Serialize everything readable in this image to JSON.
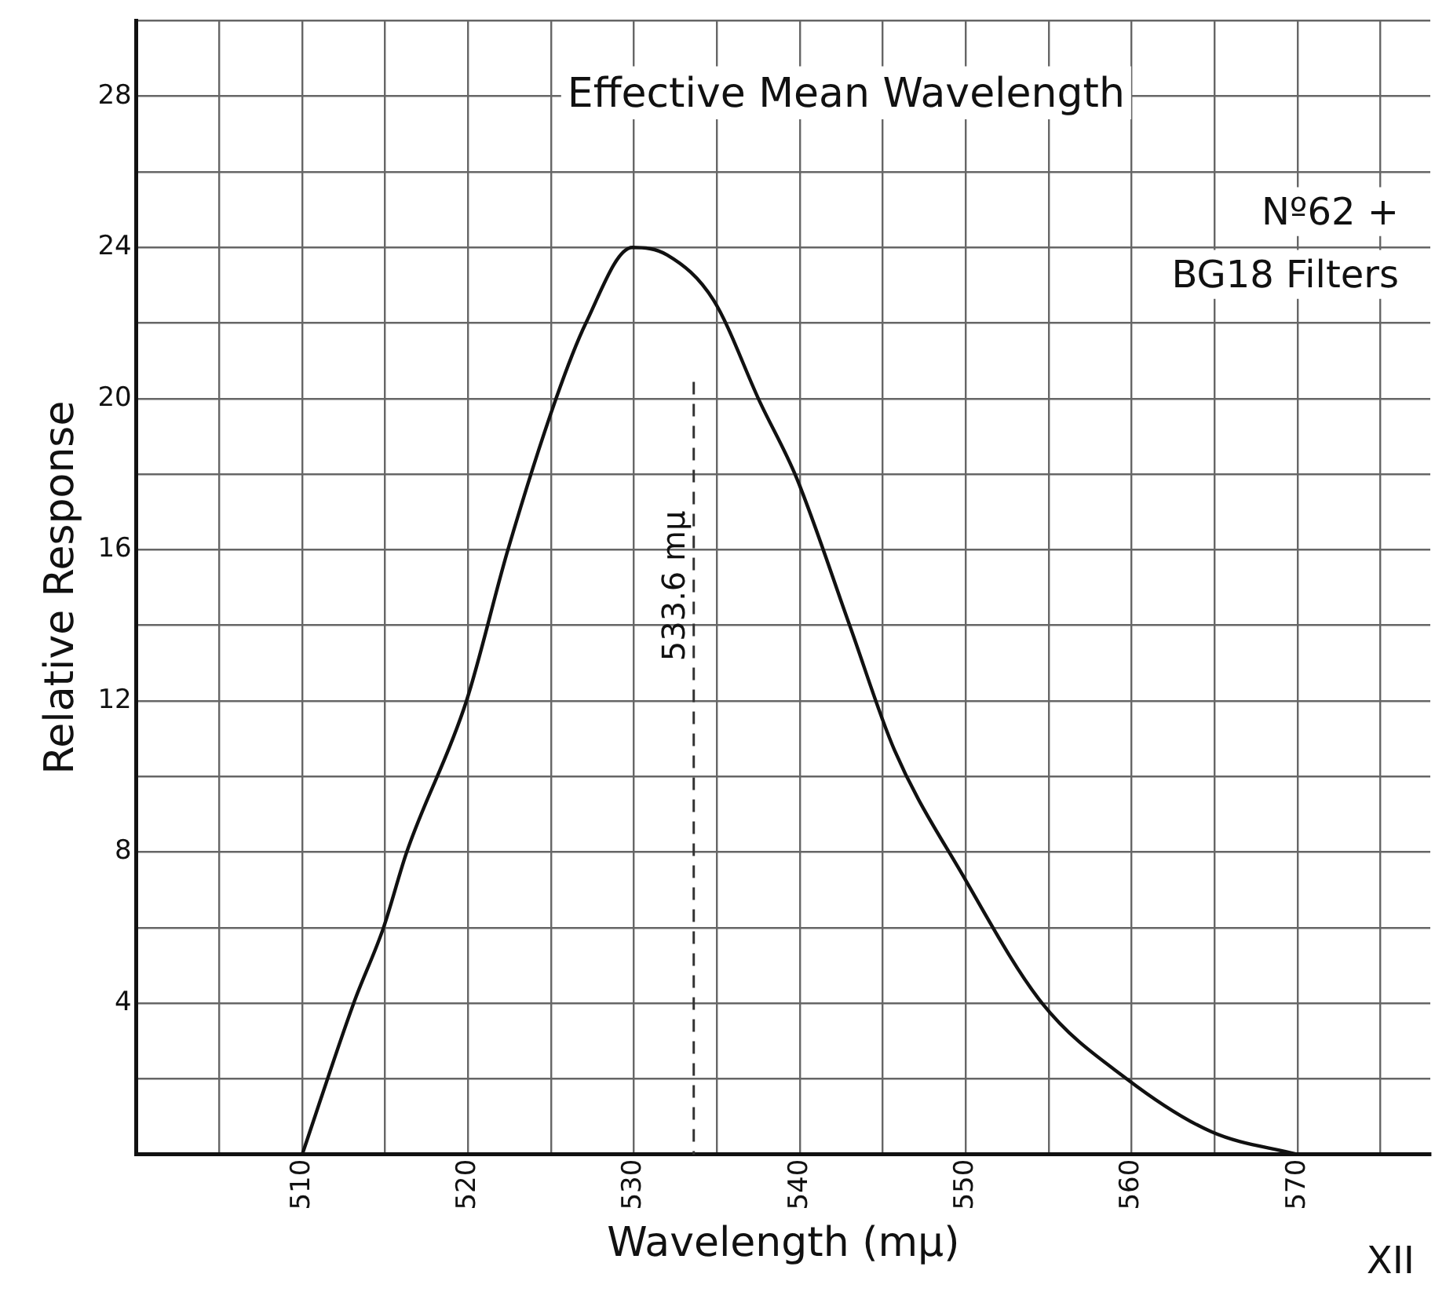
{
  "chart_data": {
    "type": "line",
    "title": "Effective Mean Wavelength",
    "xlabel": "Wavelength (mμ)",
    "ylabel": "Relative Response",
    "x": [
      510,
      513.1,
      514.9,
      516.3,
      519.9,
      522.4,
      525.3,
      527.1,
      529.9,
      532,
      534.8,
      537.6,
      539.8,
      543,
      545.7,
      549.8,
      554.6,
      559.7,
      564.8,
      570
    ],
    "series": [
      {
        "color": "#111111",
        "values": [
          0,
          4,
          6,
          8,
          12,
          16,
          20,
          22,
          24,
          23.8,
          22.6,
          19.9,
          17.9,
          14,
          10.7,
          7.4,
          4,
          2,
          0.6,
          0
        ]
      }
    ],
    "xlim": [
      500,
      578
    ],
    "ylim": [
      0,
      30
    ],
    "xticks": [
      {
        "value": 505,
        "label": null
      },
      510,
      {
        "value": 515,
        "label": null
      },
      520,
      {
        "value": 525,
        "label": null
      },
      530,
      {
        "value": 535,
        "label": null
      },
      540,
      {
        "value": 545,
        "label": null
      },
      550,
      {
        "value": 555,
        "label": null
      },
      560,
      {
        "value": 565,
        "label": null
      },
      570,
      {
        "value": 575,
        "label": null
      }
    ],
    "yticks": [
      {
        "value": 2,
        "label": null
      },
      4,
      {
        "value": 6,
        "label": null
      },
      8,
      {
        "value": 10,
        "label": null
      },
      12,
      {
        "value": 14,
        "label": null
      },
      16,
      {
        "value": 18,
        "label": null
      },
      20,
      {
        "value": 22,
        "label": null
      },
      24,
      {
        "value": 26,
        "label": null
      },
      28,
      {
        "value": 30,
        "label": null
      }
    ],
    "grid": true,
    "legend": false,
    "marker": "none",
    "line_style": "solid",
    "ref_lines": [
      {
        "axis": "x",
        "value": 533.6,
        "label": "533.6 mμ",
        "line_style": "dashed",
        "color": "#333333"
      }
    ],
    "annotations": [
      "Nº62 + BG18 Filters",
      "XII"
    ]
  }
}
